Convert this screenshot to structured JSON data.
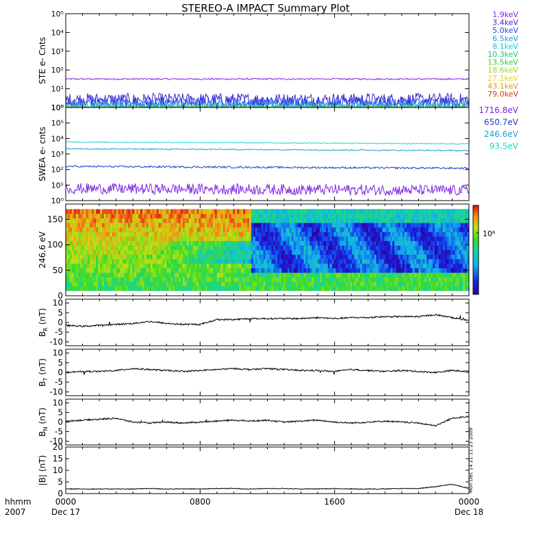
{
  "title": "STEREO-A IMPACT Summary Plot",
  "side_note": "Mon Dec 14 21:11:23 2009",
  "time_axis": {
    "label_line1": "hhmm",
    "label_line2": "2007",
    "ticks": [
      {
        "hour": 0,
        "top": "0000",
        "bottom": "Dec 17"
      },
      {
        "hour": 8,
        "top": "0800",
        "bottom": ""
      },
      {
        "hour": 16,
        "top": "1600",
        "bottom": ""
      },
      {
        "hour": 24,
        "top": "0000",
        "bottom": "Dec 18"
      }
    ],
    "range_hours": [
      0,
      24
    ]
  },
  "colors": {
    "ste": [
      "#7b22e0",
      "#3b22cc",
      "#2045e8",
      "#1f98e6",
      "#18c8d8",
      "#16c878",
      "#33cc22",
      "#9fd81a",
      "#e8d21a",
      "#e09a18",
      "#d83a1a"
    ],
    "swea": [
      "#7b22e0",
      "#1a3ac8",
      "#1aa0d8",
      "#18d8c8"
    ],
    "mag": "#000000"
  },
  "chart_data": [
    {
      "type": "line",
      "name": "ste",
      "ylabel": "STE e- Cnts",
      "yscale": "log",
      "ylim": [
        1,
        100000
      ],
      "yticks": [
        "10⁰",
        "10¹",
        "10²",
        "10³",
        "10⁴",
        "10⁵"
      ],
      "series": [
        {
          "name": "1.9keV",
          "level": 33,
          "noise": 0.04
        },
        {
          "name": "3.4keV",
          "level": 2.6,
          "noise": 0.35
        },
        {
          "name": "5.0keV",
          "level": 1.8,
          "noise": 0.3
        },
        {
          "name": "6.5keV",
          "level": 1.4,
          "noise": 0.2
        },
        {
          "name": "8.1keV",
          "level": 1.1,
          "noise": 0.12
        },
        {
          "name": "10.3keV",
          "level": 1.0,
          "noise": 0.08
        },
        {
          "name": "13.5keV",
          "level": 1.0,
          "noise": 0.06
        },
        {
          "name": "18.6keV",
          "level": 1.0,
          "noise": 0.04
        },
        {
          "name": "27.1keV",
          "level": 1.0,
          "noise": 0.03
        },
        {
          "name": "43.1keV",
          "level": 1.0,
          "noise": 0.02
        },
        {
          "name": "79.0keV",
          "level": 1.0,
          "noise": 0.02
        }
      ]
    },
    {
      "type": "line",
      "name": "swea",
      "ylabel": "SWEA e- cnts",
      "yscale": "log",
      "ylim": [
        1,
        1000000
      ],
      "yticks": [
        "10⁰",
        "10¹",
        "10²",
        "10³",
        "10⁴",
        "10⁵",
        "10⁶"
      ],
      "series": [
        {
          "name": "1716.8eV",
          "level": 6,
          "noise": 0.35
        },
        {
          "name": "650.7eV",
          "level": 160,
          "noise": 0.06
        },
        {
          "name": "246.6eV",
          "level": 2200,
          "noise": 0.04
        },
        {
          "name": "93.5eV",
          "level": 6000,
          "noise": 0.03
        }
      ]
    },
    {
      "type": "heatmap",
      "name": "pitch-angle",
      "ylabel": "246.6 eV",
      "ylim": [
        0,
        180
      ],
      "yticks": [
        "0",
        "50",
        "100",
        "150"
      ],
      "colorbar_label": "10⁶"
    },
    {
      "type": "line",
      "name": "br",
      "ylabel": "B",
      "ylabel_sub": "R",
      "ylabel_unit": "(nT)",
      "ylim": [
        -12,
        12
      ],
      "yticks": [
        "-10",
        "-5",
        "0",
        "5",
        "10"
      ],
      "x": [
        0,
        1,
        2,
        3,
        4,
        5,
        6,
        7,
        8,
        9,
        10,
        11,
        12,
        13,
        14,
        15,
        16,
        17,
        18,
        19,
        20,
        21,
        22,
        23,
        24
      ],
      "values": [
        -1.5,
        -2.0,
        -1.5,
        -1.0,
        -0.5,
        0.5,
        -0.5,
        -1.0,
        -1.0,
        1.5,
        1.5,
        2.0,
        2.0,
        2.0,
        2.0,
        2.5,
        2.0,
        2.5,
        2.5,
        3.0,
        3.0,
        3.0,
        4.0,
        2.5,
        1.0
      ]
    },
    {
      "type": "line",
      "name": "bt",
      "ylabel": "B",
      "ylabel_sub": "T",
      "ylabel_unit": "(nT)",
      "ylim": [
        -12,
        12
      ],
      "yticks": [
        "-10",
        "-5",
        "0",
        "5",
        "10"
      ],
      "x": [
        0,
        1,
        2,
        3,
        4,
        5,
        6,
        7,
        8,
        9,
        10,
        11,
        12,
        13,
        14,
        15,
        16,
        17,
        18,
        19,
        20,
        21,
        22,
        23,
        24
      ],
      "values": [
        0.0,
        0.5,
        0.5,
        1.0,
        2.0,
        1.5,
        1.0,
        0.5,
        1.0,
        1.5,
        2.0,
        1.5,
        2.0,
        1.5,
        1.0,
        1.0,
        0.5,
        1.5,
        1.0,
        0.5,
        1.0,
        0.5,
        0.0,
        1.0,
        0.5
      ]
    },
    {
      "type": "line",
      "name": "bn",
      "ylabel": "B",
      "ylabel_sub": "N",
      "ylabel_unit": "(nT)",
      "ylim": [
        -12,
        12
      ],
      "yticks": [
        "-10",
        "-5",
        "0",
        "5",
        "10"
      ],
      "x": [
        0,
        1,
        2,
        3,
        4,
        5,
        6,
        7,
        8,
        9,
        10,
        11,
        12,
        13,
        14,
        15,
        16,
        17,
        18,
        19,
        20,
        21,
        22,
        23,
        24
      ],
      "values": [
        0.5,
        1.0,
        1.5,
        2.0,
        0.0,
        -0.5,
        0.0,
        -0.5,
        0.0,
        0.5,
        1.0,
        0.5,
        1.0,
        0.0,
        0.5,
        1.0,
        0.0,
        -0.5,
        0.0,
        0.5,
        0.0,
        -0.5,
        -2.0,
        2.0,
        3.0
      ]
    },
    {
      "type": "line",
      "name": "bmag",
      "ylabel": "|B|",
      "ylabel_sub": "",
      "ylabel_unit": "(nT)",
      "ylim": [
        0,
        20
      ],
      "yticks": [
        "0",
        "5",
        "10",
        "15",
        "20"
      ],
      "x": [
        0,
        1,
        2,
        3,
        4,
        5,
        6,
        7,
        8,
        9,
        10,
        11,
        12,
        13,
        14,
        15,
        16,
        17,
        18,
        19,
        20,
        21,
        22,
        23,
        24
      ],
      "values": [
        2.0,
        2.0,
        2.0,
        2.0,
        2.0,
        2.2,
        2.0,
        2.0,
        2.0,
        2.2,
        2.2,
        2.0,
        2.2,
        2.2,
        2.0,
        2.0,
        2.2,
        2.0,
        2.0,
        2.0,
        2.2,
        2.2,
        3.0,
        4.0,
        2.2
      ]
    }
  ]
}
